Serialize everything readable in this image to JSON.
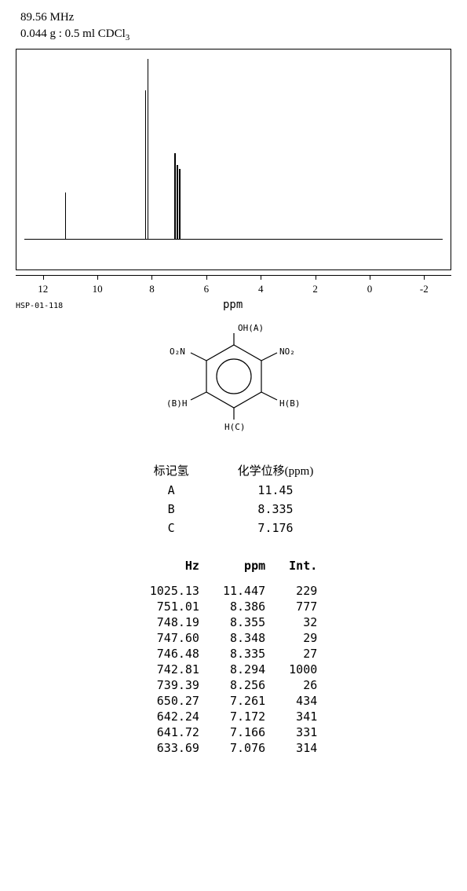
{
  "header": {
    "freq": "89.56 MHz",
    "sample": "0.044 g : 0.5 ml CDCl",
    "sample_sub": "3"
  },
  "spectrum": {
    "xmin": -3,
    "xmax": 13,
    "ticks": [
      12,
      10,
      8,
      6,
      4,
      2,
      0,
      -2
    ],
    "axis_label": "ppm",
    "code": "HSP-01-118",
    "peaks_ppm_height": [
      [
        11.45,
        60
      ],
      [
        8.39,
        190
      ],
      [
        8.29,
        230
      ],
      [
        7.26,
        110
      ],
      [
        7.17,
        95
      ],
      [
        7.08,
        90
      ]
    ],
    "line_color": "#000000",
    "background": "#ffffff"
  },
  "molecule": {
    "label_A": "OH(A)",
    "label_NO2_l": "O₂N",
    "label_NO2_r": "NO₂",
    "label_B_l": "(B)H",
    "label_B_r": "H(B)",
    "label_C": "H(C)"
  },
  "assign": {
    "hdr1": "标记氢",
    "hdr2": "化学位移(ppm)",
    "rows": [
      {
        "h": "A",
        "ppm": "11.45"
      },
      {
        "h": "B",
        "ppm": "8.335"
      },
      {
        "h": "C",
        "ppm": "7.176"
      }
    ]
  },
  "peaks": {
    "hdr_hz": "Hz",
    "hdr_ppm": "ppm",
    "hdr_int": "Int.",
    "rows": [
      {
        "hz": "1025.13",
        "ppm": "11.447",
        "i": "229"
      },
      {
        "hz": "751.01",
        "ppm": "8.386",
        "i": "777"
      },
      {
        "hz": "748.19",
        "ppm": "8.355",
        "i": "32"
      },
      {
        "hz": "747.60",
        "ppm": "8.348",
        "i": "29"
      },
      {
        "hz": "746.48",
        "ppm": "8.335",
        "i": "27"
      },
      {
        "hz": "742.81",
        "ppm": "8.294",
        "i": "1000"
      },
      {
        "hz": "739.39",
        "ppm": "8.256",
        "i": "26"
      },
      {
        "hz": "650.27",
        "ppm": "7.261",
        "i": "434"
      },
      {
        "hz": "642.24",
        "ppm": "7.172",
        "i": "341"
      },
      {
        "hz": "641.72",
        "ppm": "7.166",
        "i": "331"
      },
      {
        "hz": "633.69",
        "ppm": "7.076",
        "i": "314"
      }
    ]
  }
}
